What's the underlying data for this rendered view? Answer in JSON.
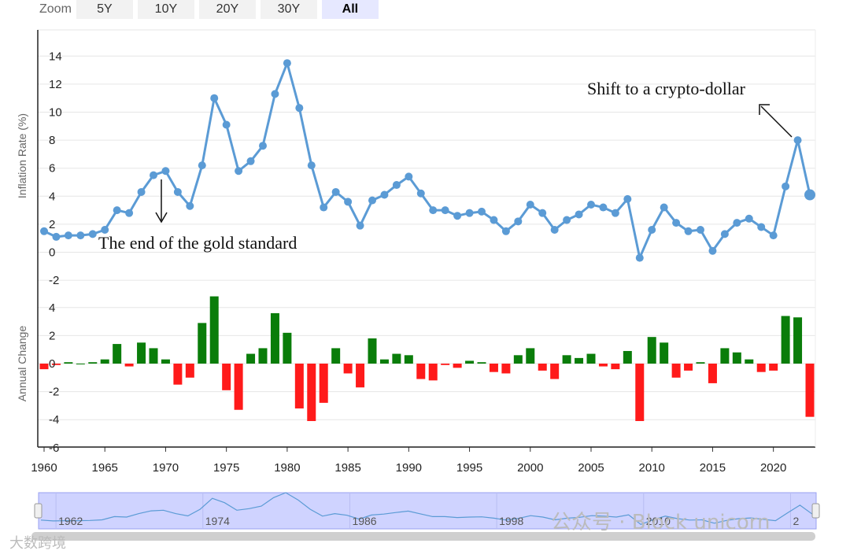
{
  "zoom": {
    "label": "Zoom",
    "buttons": [
      {
        "label": "5Y",
        "active": false
      },
      {
        "label": "10Y",
        "active": false
      },
      {
        "label": "20Y",
        "active": false
      },
      {
        "label": "30Y",
        "active": false
      },
      {
        "label": "All",
        "active": true
      }
    ]
  },
  "annotations": {
    "gold": "The end of the gold standard",
    "crypto": "Shift to a crypto-dollar"
  },
  "navigator": {
    "ticks": [
      "1962",
      "1974",
      "1986",
      "1998",
      "2010",
      "2"
    ]
  },
  "watermarks": {
    "left": "大数跨境",
    "right": "公众号 · Block unicorn"
  },
  "colors": {
    "line": "#5b9bd5",
    "positive": "#0a7d0a",
    "negative": "#ff1a1a",
    "navigator": "#cfd3ff"
  },
  "chart_data": [
    {
      "type": "line",
      "ylabel": "Inflation Rate (%)",
      "ylim": [
        -2,
        16
      ],
      "yticks": [
        -2,
        0,
        2,
        4,
        6,
        8,
        10,
        12,
        14
      ],
      "grid": true,
      "x": [
        1960,
        1961,
        1962,
        1963,
        1964,
        1965,
        1966,
        1967,
        1968,
        1969,
        1970,
        1971,
        1972,
        1973,
        1974,
        1975,
        1976,
        1977,
        1978,
        1979,
        1980,
        1981,
        1982,
        1983,
        1984,
        1985,
        1986,
        1987,
        1988,
        1989,
        1990,
        1991,
        1992,
        1993,
        1994,
        1995,
        1996,
        1997,
        1998,
        1999,
        2000,
        2001,
        2002,
        2003,
        2004,
        2005,
        2006,
        2007,
        2008,
        2009,
        2010,
        2011,
        2012,
        2013,
        2014,
        2015,
        2016,
        2017,
        2018,
        2019,
        2020,
        2021,
        2022,
        2023
      ],
      "series": [
        {
          "values": [
            1.5,
            1.1,
            1.2,
            1.2,
            1.3,
            1.6,
            3.0,
            2.8,
            4.3,
            5.5,
            5.8,
            4.3,
            3.3,
            6.2,
            11.0,
            9.1,
            5.8,
            6.5,
            7.6,
            11.3,
            13.5,
            10.3,
            6.2,
            3.2,
            4.3,
            3.6,
            1.9,
            3.7,
            4.1,
            4.8,
            5.4,
            4.2,
            3.0,
            3.0,
            2.6,
            2.8,
            2.9,
            2.3,
            1.5,
            2.2,
            3.4,
            2.8,
            1.6,
            2.3,
            2.7,
            3.4,
            3.2,
            2.8,
            3.8,
            -0.4,
            1.6,
            3.2,
            2.1,
            1.5,
            1.6,
            0.1,
            1.3,
            2.1,
            2.4,
            1.8,
            1.2,
            4.7,
            8.0,
            4.1
          ]
        }
      ]
    },
    {
      "type": "bar",
      "ylabel": "Annual Change",
      "ylim": [
        -6,
        6
      ],
      "yticks": [
        -6,
        -4,
        -2,
        0,
        2,
        4
      ],
      "grid": true,
      "x": [
        1960,
        1961,
        1962,
        1963,
        1964,
        1965,
        1966,
        1967,
        1968,
        1969,
        1970,
        1971,
        1972,
        1973,
        1974,
        1975,
        1976,
        1977,
        1978,
        1979,
        1980,
        1981,
        1982,
        1983,
        1984,
        1985,
        1986,
        1987,
        1988,
        1989,
        1990,
        1991,
        1992,
        1993,
        1994,
        1995,
        1996,
        1997,
        1998,
        1999,
        2000,
        2001,
        2002,
        2003,
        2004,
        2005,
        2006,
        2007,
        2008,
        2009,
        2010,
        2011,
        2012,
        2013,
        2014,
        2015,
        2016,
        2017,
        2018,
        2019,
        2020,
        2021,
        2022,
        2023
      ],
      "values": [
        -0.4,
        -0.1,
        0.1,
        0.0,
        0.1,
        0.3,
        1.4,
        -0.2,
        1.5,
        1.1,
        0.3,
        -1.5,
        -1.0,
        2.9,
        4.8,
        -1.9,
        -3.3,
        0.7,
        1.1,
        3.6,
        2.2,
        -3.2,
        -4.1,
        -2.8,
        1.1,
        -0.7,
        -1.7,
        1.8,
        0.3,
        0.7,
        0.6,
        -1.1,
        -1.2,
        -0.1,
        -0.3,
        0.2,
        0.1,
        -0.6,
        -0.7,
        0.6,
        1.1,
        -0.5,
        -1.1,
        0.6,
        0.4,
        0.7,
        -0.2,
        -0.4,
        0.9,
        -4.1,
        1.9,
        1.5,
        -1.0,
        -0.5,
        0.1,
        -1.4,
        1.1,
        0.8,
        0.3,
        -0.6,
        -0.5,
        3.4,
        3.3,
        -3.8
      ]
    },
    {
      "type": "axis",
      "xticks": [
        1960,
        1965,
        1970,
        1975,
        1980,
        1985,
        1990,
        1995,
        2000,
        2005,
        2010,
        2015,
        2020
      ]
    }
  ]
}
